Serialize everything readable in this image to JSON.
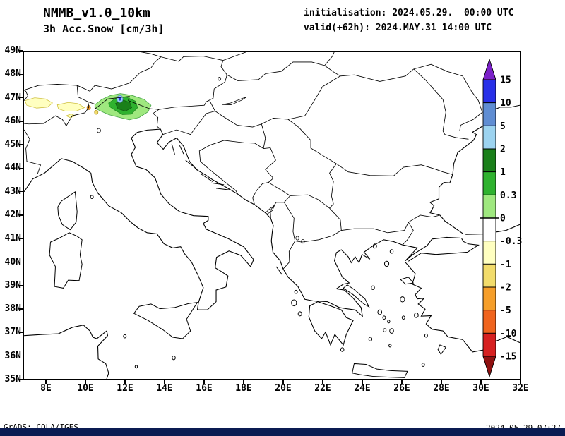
{
  "header": {
    "model": "NMMB_v1.0_10km",
    "field": "3h Acc.Snow [cm/3h]",
    "initialisation": "initialisation: 2024.05.29.  00:00 UTC",
    "valid": "valid(+62h): 2024.MAY.31 14:00 UTC"
  },
  "axes": {
    "lat_labels": [
      "49N",
      "48N",
      "47N",
      "46N",
      "45N",
      "44N",
      "43N",
      "42N",
      "41N",
      "40N",
      "39N",
      "38N",
      "37N",
      "36N",
      "35N"
    ],
    "lon_labels": [
      "8E",
      "10E",
      "12E",
      "14E",
      "16E",
      "18E",
      "20E",
      "22E",
      "24E",
      "26E",
      "28E",
      "30E",
      "32E"
    ]
  },
  "colorbar": {
    "units": "cm/3h",
    "tick_labels": [
      "15",
      "10",
      "5",
      "2",
      "1",
      "0.3",
      "0",
      "-0.3",
      "-1",
      "-2",
      "-5",
      "-10",
      "-15"
    ],
    "colors_top_to_bottom": [
      "#7B21C8",
      "#2830E8",
      "#5F8DD3",
      "#9CD3F0",
      "#1A801A",
      "#2FB22F",
      "#9FE87F",
      "#FFFFFF",
      "#FFFFC0",
      "#F2DC6B",
      "#F59E2A",
      "#F0641E",
      "#D62020",
      "#8F1010"
    ]
  },
  "footer": {
    "left": "GrADS: COLA/IGES",
    "right": "2024-05-29-07:27"
  }
}
